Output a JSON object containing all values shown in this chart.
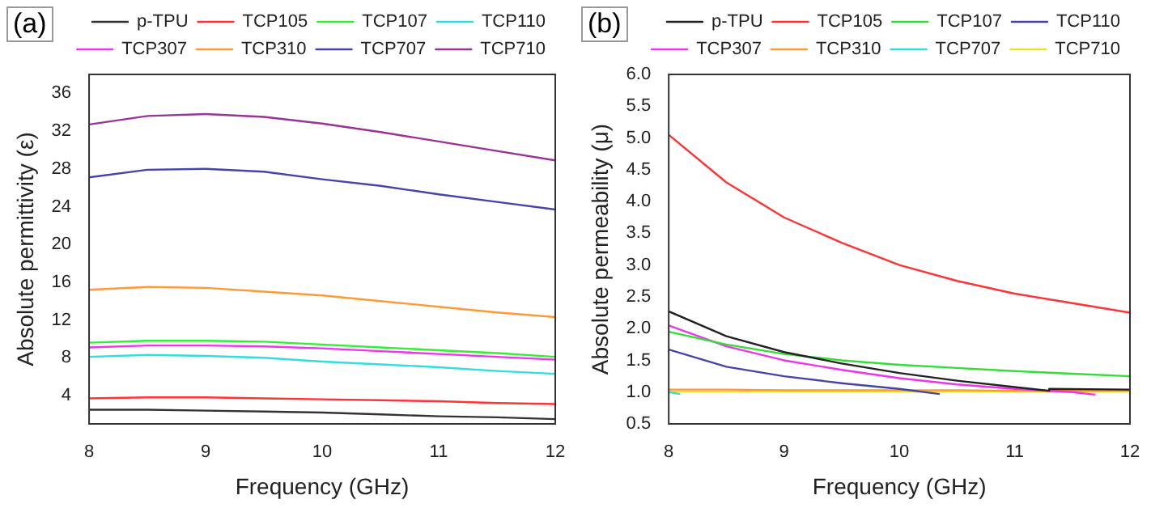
{
  "chart_data": [
    {
      "type": "line",
      "title": "(a)",
      "xlabel": "Frequency (GHz)",
      "ylabel": "Absolute permittivity (ε)",
      "x": [
        8,
        8.5,
        9,
        9.5,
        10,
        10.5,
        11,
        11.5,
        12
      ],
      "xlim": [
        8,
        12
      ],
      "xticks": [
        8,
        9,
        10,
        11,
        12
      ],
      "ylim": [
        1,
        38
      ],
      "yticks": [
        4,
        8,
        12,
        16,
        20,
        24,
        28,
        32,
        36
      ],
      "grid": false,
      "legend": "top",
      "marker": "none",
      "line_style": "solid",
      "series": [
        {
          "name": "p-TPU",
          "color": "#333333",
          "values": [
            2.5,
            2.5,
            2.4,
            2.3,
            2.2,
            2.0,
            1.8,
            1.7,
            1.5
          ]
        },
        {
          "name": "TCP105",
          "color": "#ff3333",
          "values": [
            3.7,
            3.8,
            3.8,
            3.7,
            3.6,
            3.5,
            3.4,
            3.2,
            3.1
          ]
        },
        {
          "name": "TCP107",
          "color": "#33ee33",
          "values": [
            9.6,
            9.8,
            9.8,
            9.7,
            9.4,
            9.1,
            8.8,
            8.5,
            8.1
          ]
        },
        {
          "name": "TCP110",
          "color": "#33dddd",
          "values": [
            8.1,
            8.3,
            8.2,
            8.0,
            7.6,
            7.3,
            7.0,
            6.6,
            6.3
          ]
        },
        {
          "name": "TCP307",
          "color": "#ee33ee",
          "values": [
            9.1,
            9.3,
            9.3,
            9.2,
            9.0,
            8.7,
            8.4,
            8.1,
            7.8
          ]
        },
        {
          "name": "TCP310",
          "color": "#ff9933",
          "values": [
            15.2,
            15.5,
            15.4,
            15.0,
            14.6,
            14.0,
            13.4,
            12.8,
            12.3
          ]
        },
        {
          "name": "TCP707",
          "color": "#4444aa",
          "values": [
            27.1,
            27.9,
            28.0,
            27.7,
            26.9,
            26.2,
            25.3,
            24.5,
            23.7
          ]
        },
        {
          "name": "TCP710",
          "color": "#993399",
          "values": [
            32.7,
            33.6,
            33.8,
            33.5,
            32.8,
            31.9,
            30.9,
            29.9,
            28.9
          ]
        }
      ]
    },
    {
      "type": "line",
      "title": "(b)",
      "xlabel": "Frequency (GHz)",
      "ylabel": "Absolute permeability (μ)",
      "x": [
        8,
        8.5,
        9,
        9.5,
        10,
        10.5,
        11,
        11.5,
        12
      ],
      "xlim": [
        8,
        12
      ],
      "xticks": [
        8,
        9,
        10,
        11,
        12
      ],
      "ylim": [
        0.5,
        6
      ],
      "yticks": [
        0.5,
        {
          "value": 1,
          "label": "1.0"
        },
        1.5,
        {
          "value": 2,
          "label": "2.0"
        },
        2.5,
        {
          "value": 3,
          "label": "3.0"
        },
        3.5,
        {
          "value": 4,
          "label": "4.0"
        },
        4.5,
        {
          "value": 5,
          "label": "5.0"
        },
        5.5,
        {
          "value": 6,
          "label": "6.0"
        }
      ],
      "grid": false,
      "legend": "top",
      "marker": "none",
      "line_style": "solid",
      "series": [
        {
          "name": "p-TPU",
          "color": "#222222",
          "x": [
            8,
            8.5,
            9,
            9.5,
            10,
            10.5,
            11,
            11.3,
            11.3,
            12
          ],
          "values": [
            2.27,
            1.88,
            1.63,
            1.45,
            1.3,
            1.18,
            1.08,
            1.02,
            1.05,
            1.04
          ]
        },
        {
          "name": "TCP105",
          "color": "#ff3333",
          "values": [
            5.05,
            4.3,
            3.75,
            3.35,
            3.0,
            2.75,
            2.55,
            2.4,
            2.25
          ]
        },
        {
          "name": "TCP107",
          "color": "#33dd33",
          "values": [
            1.95,
            1.75,
            1.6,
            1.5,
            1.43,
            1.38,
            1.33,
            1.29,
            1.25
          ]
        },
        {
          "name": "TCP110",
          "color": "#4444aa",
          "x": [
            8,
            8.5,
            9,
            9.5,
            10,
            10.35
          ],
          "values": [
            1.67,
            1.4,
            1.25,
            1.14,
            1.05,
            0.97
          ]
        },
        {
          "name": "TCP307",
          "color": "#ee33ee",
          "x": [
            8,
            8.5,
            9,
            9.5,
            10,
            10.5,
            11,
            11.5,
            11.7
          ],
          "values": [
            2.05,
            1.72,
            1.5,
            1.35,
            1.22,
            1.12,
            1.05,
            1.0,
            0.96
          ]
        },
        {
          "name": "TCP310",
          "color": "#ff9933",
          "values": [
            1.04,
            1.04,
            1.03,
            1.03,
            1.03,
            1.03,
            1.02,
            1.02,
            1.02
          ]
        },
        {
          "name": "TCP707",
          "color": "#33dddd",
          "x": [
            8,
            8.1
          ],
          "values": [
            1.0,
            0.97
          ]
        },
        {
          "name": "TCP710",
          "color": "#eedd33",
          "values": [
            1.01,
            1.01,
            1.01,
            1.01,
            1.01,
            1.01,
            1.01,
            1.01,
            1.01
          ]
        }
      ]
    }
  ]
}
